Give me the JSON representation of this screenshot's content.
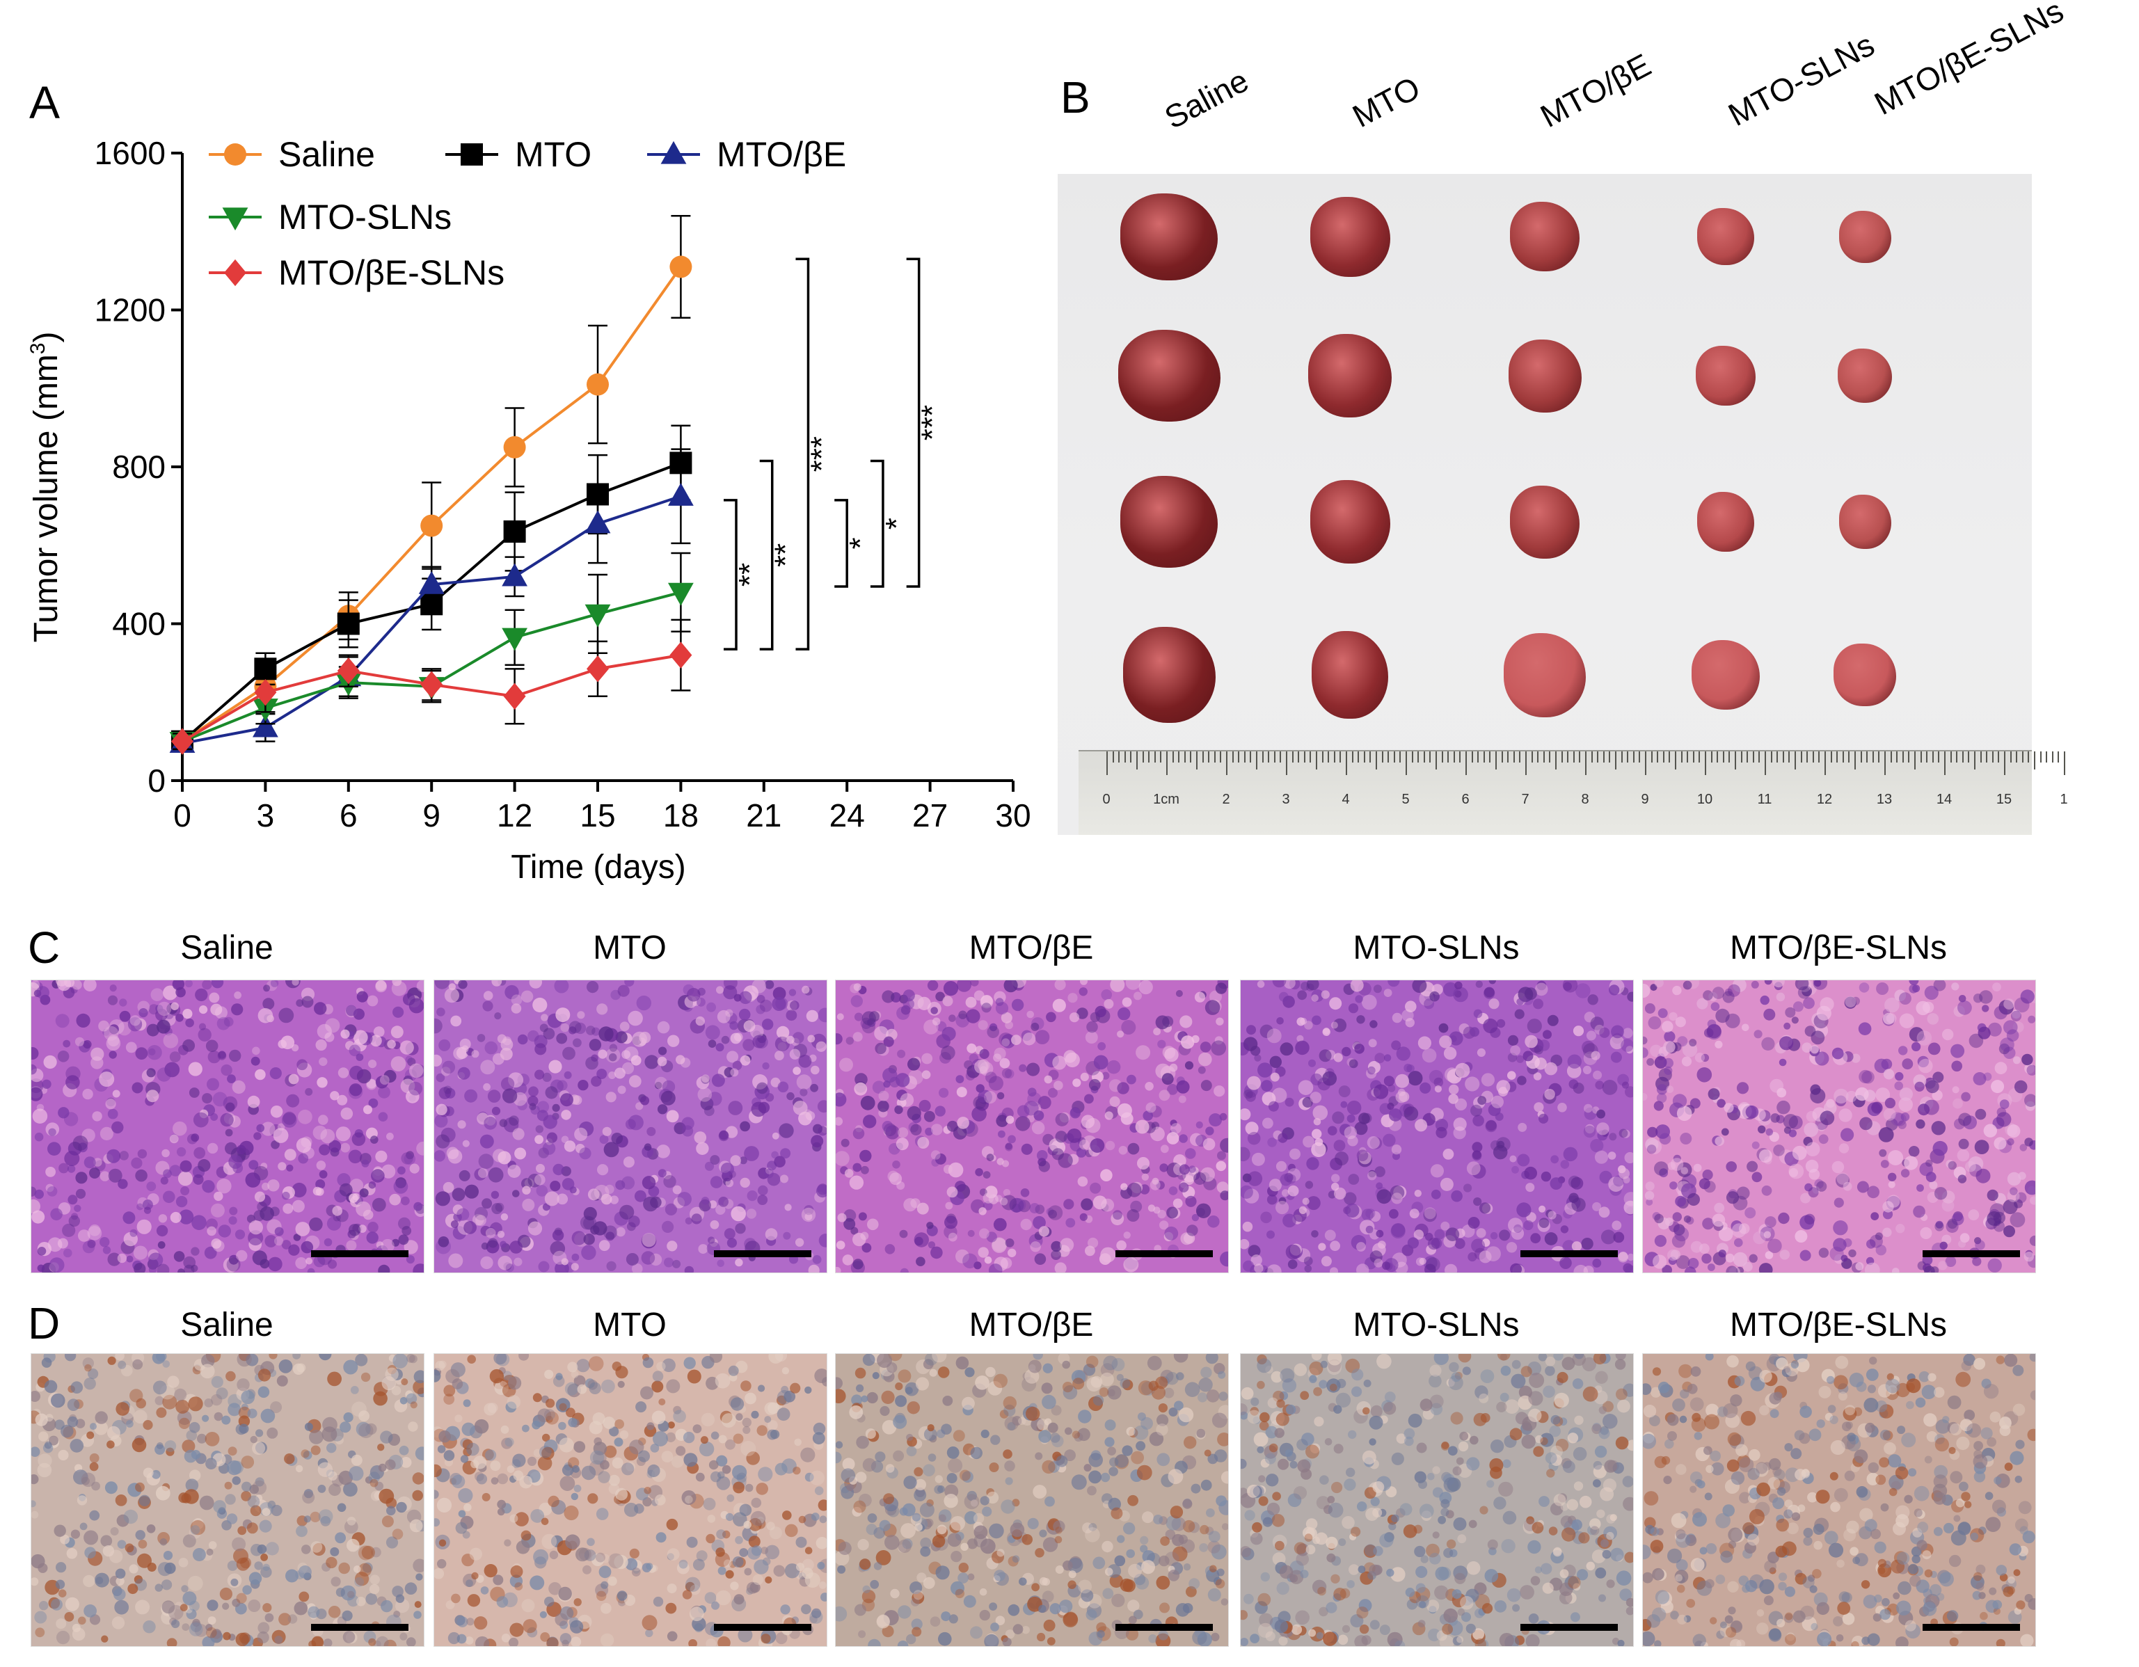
{
  "panels": {
    "A": "A",
    "B": "B",
    "C": "C",
    "D": "D"
  },
  "chart_data": {
    "type": "line",
    "ylabel_main": "Tumor volume (mm",
    "ylabel_sup": "3",
    "ylabel_end": ")",
    "xlabel": "Time (days)",
    "xlim": [
      0,
      30
    ],
    "ylim": [
      0,
      1600
    ],
    "x_ticks": [
      "0",
      "3",
      "6",
      "9",
      "12",
      "15",
      "18",
      "21",
      "24",
      "27",
      "30"
    ],
    "y_ticks": [
      "0",
      "400",
      "800",
      "1200",
      "1600"
    ],
    "legend_placement": "top-left",
    "x": [
      0,
      3,
      6,
      9,
      12,
      15,
      18
    ],
    "series": [
      {
        "name": "Saline",
        "color": "#f28a2e",
        "marker": "circle",
        "values": [
          100,
          240,
          420,
          650,
          850,
          1010,
          1310
        ],
        "errors": [
          25,
          40,
          60,
          110,
          100,
          150,
          130
        ]
      },
      {
        "name": "MTO",
        "color": "#000000",
        "marker": "square",
        "values": [
          100,
          285,
          400,
          450,
          635,
          730,
          810
        ],
        "errors": [
          25,
          40,
          60,
          65,
          100,
          100,
          95
        ]
      },
      {
        "name": "MTO/βE",
        "color": "#1d2a8c",
        "marker": "triangle-up",
        "values": [
          95,
          135,
          265,
          500,
          520,
          655,
          725
        ],
        "errors": [
          20,
          35,
          50,
          45,
          50,
          100,
          120
        ]
      },
      {
        "name": "MTO-SLNs",
        "color": "#1a8a2a",
        "marker": "triangle-down",
        "values": [
          100,
          185,
          250,
          240,
          365,
          425,
          480
        ],
        "errors": [
          20,
          40,
          40,
          40,
          70,
          100,
          100
        ]
      },
      {
        "name": "MTO/βE-SLNs",
        "color": "#e23b3b",
        "marker": "diamond",
        "values": [
          100,
          225,
          280,
          245,
          215,
          285,
          320
        ],
        "errors": [
          20,
          50,
          40,
          40,
          70,
          70,
          90
        ]
      }
    ],
    "significance": [
      {
        "label": "**",
        "day_x": 20,
        "y_top": 715,
        "y_bottom": 335
      },
      {
        "label": "**",
        "day_x": 21.3,
        "y_top": 815,
        "y_bottom": 335
      },
      {
        "label": "***",
        "day_x": 22.6,
        "y_top": 1330,
        "y_bottom": 335
      },
      {
        "label": "*",
        "day_x": 24,
        "y_top": 715,
        "y_bottom": 495
      },
      {
        "label": "*",
        "day_x": 25.3,
        "y_top": 815,
        "y_bottom": 495
      },
      {
        "label": "***",
        "day_x": 26.6,
        "y_top": 1330,
        "y_bottom": 495
      }
    ]
  },
  "photo_B": {
    "column_labels": [
      "Saline",
      "MTO",
      "MTO/βE",
      "MTO-SLNs",
      "MTO/βE-SLNs"
    ],
    "ruler_labels": [
      "0",
      "1cm",
      "2",
      "3",
      "4",
      "5",
      "6",
      "7",
      "8",
      "9",
      "10",
      "11",
      "12",
      "13",
      "14",
      "15",
      "1"
    ]
  },
  "histology_C": {
    "labels": [
      "Saline",
      "MTO",
      "MTO/βE",
      "MTO-SLNs",
      "MTO/βE-SLNs"
    ],
    "stain_colors": [
      "#b565c7",
      "#b06ac8",
      "#c06cc6",
      "#a85fc4",
      "#dc8fcb"
    ]
  },
  "histology_D": {
    "labels": [
      "Saline",
      "MTO",
      "MTO/βE",
      "MTO-SLNs",
      "MTO/βE-SLNs"
    ],
    "stain_colors": [
      "#c9b4ab",
      "#d6b7ac",
      "#bfab9f",
      "#b4acaa",
      "#c7a89c"
    ]
  }
}
